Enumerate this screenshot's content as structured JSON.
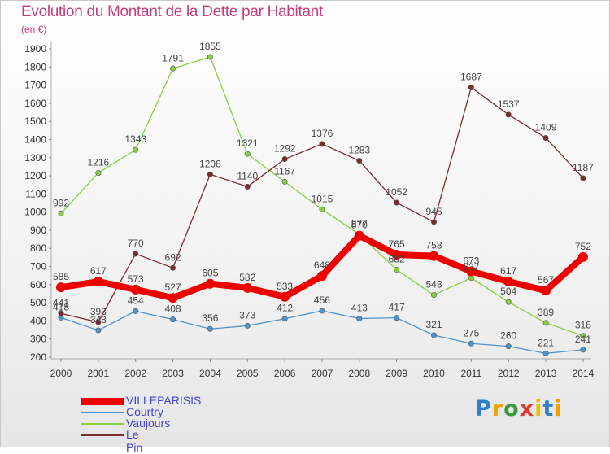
{
  "title": "Evolution du Montant de la Dette par Habitant",
  "unit": "(en €)",
  "logo": {
    "letters": [
      "P",
      "r",
      "o",
      "x",
      "i",
      "t",
      "i"
    ],
    "colors": [
      "#2f80c6",
      "#f0a000",
      "#3a9a3a",
      "#e03a2a",
      "#f0c000",
      "#2f80c6",
      "#f0a000"
    ]
  },
  "chart_data": {
    "type": "line",
    "x": [
      "2000",
      "2001",
      "2002",
      "2003",
      "2004",
      "2005",
      "2006",
      "2007",
      "2008",
      "2009",
      "2010",
      "2011",
      "2012",
      "2013",
      "2014"
    ],
    "ylim": [
      200,
      1900
    ],
    "yticks": [
      200,
      300,
      400,
      500,
      600,
      700,
      800,
      900,
      1000,
      1100,
      1200,
      1300,
      1400,
      1500,
      1600,
      1700,
      1800,
      1900
    ],
    "grid": false,
    "legend": "bottom-left",
    "series": [
      {
        "name": "VILLEPARISIS",
        "color": "#ee0000",
        "values": [
          585,
          617,
          573,
          527,
          605,
          582,
          533,
          648,
          870,
          765,
          758,
          673,
          617,
          567,
          752
        ],
        "labels": [
          "585",
          "617",
          "573",
          "527",
          "605",
          "582",
          "533",
          "648",
          "870",
          "765",
          "758",
          "673",
          "617",
          "567",
          "752"
        ]
      },
      {
        "name": "Courtry",
        "color": "#4f94cd",
        "values": [
          418,
          348,
          454,
          408,
          356,
          373,
          412,
          456,
          413,
          417,
          321,
          275,
          260,
          221,
          241
        ],
        "labels": [
          "418",
          "348",
          "454",
          "408",
          "356",
          "373",
          "412",
          "456",
          "413",
          "417",
          "321",
          "275",
          "260",
          "221",
          "241"
        ]
      },
      {
        "name": "Vaujours",
        "color": "#88d040",
        "values": [
          992,
          1216,
          1343,
          1791,
          1855,
          1321,
          1167,
          1015,
          877,
          682,
          543,
          637,
          504,
          389,
          318
        ],
        "labels": [
          "992",
          "1216",
          "1343",
          "1791",
          "1855",
          "1321",
          "1167",
          "1015",
          "877",
          "682",
          "543",
          "637",
          "504",
          "389",
          "318"
        ]
      },
      {
        "name": "Le Pin",
        "color": "#7b2a30",
        "values": [
          441,
          393,
          770,
          692,
          1208,
          1140,
          1292,
          1376,
          1283,
          1052,
          945,
          1687,
          1537,
          1409,
          1187
        ],
        "labels": [
          "441",
          "393",
          "770",
          "692",
          "1208",
          "1140",
          "1292",
          "1376",
          "1283",
          "1052",
          "945",
          "1687",
          "1537",
          "1409",
          "1187"
        ]
      }
    ]
  }
}
